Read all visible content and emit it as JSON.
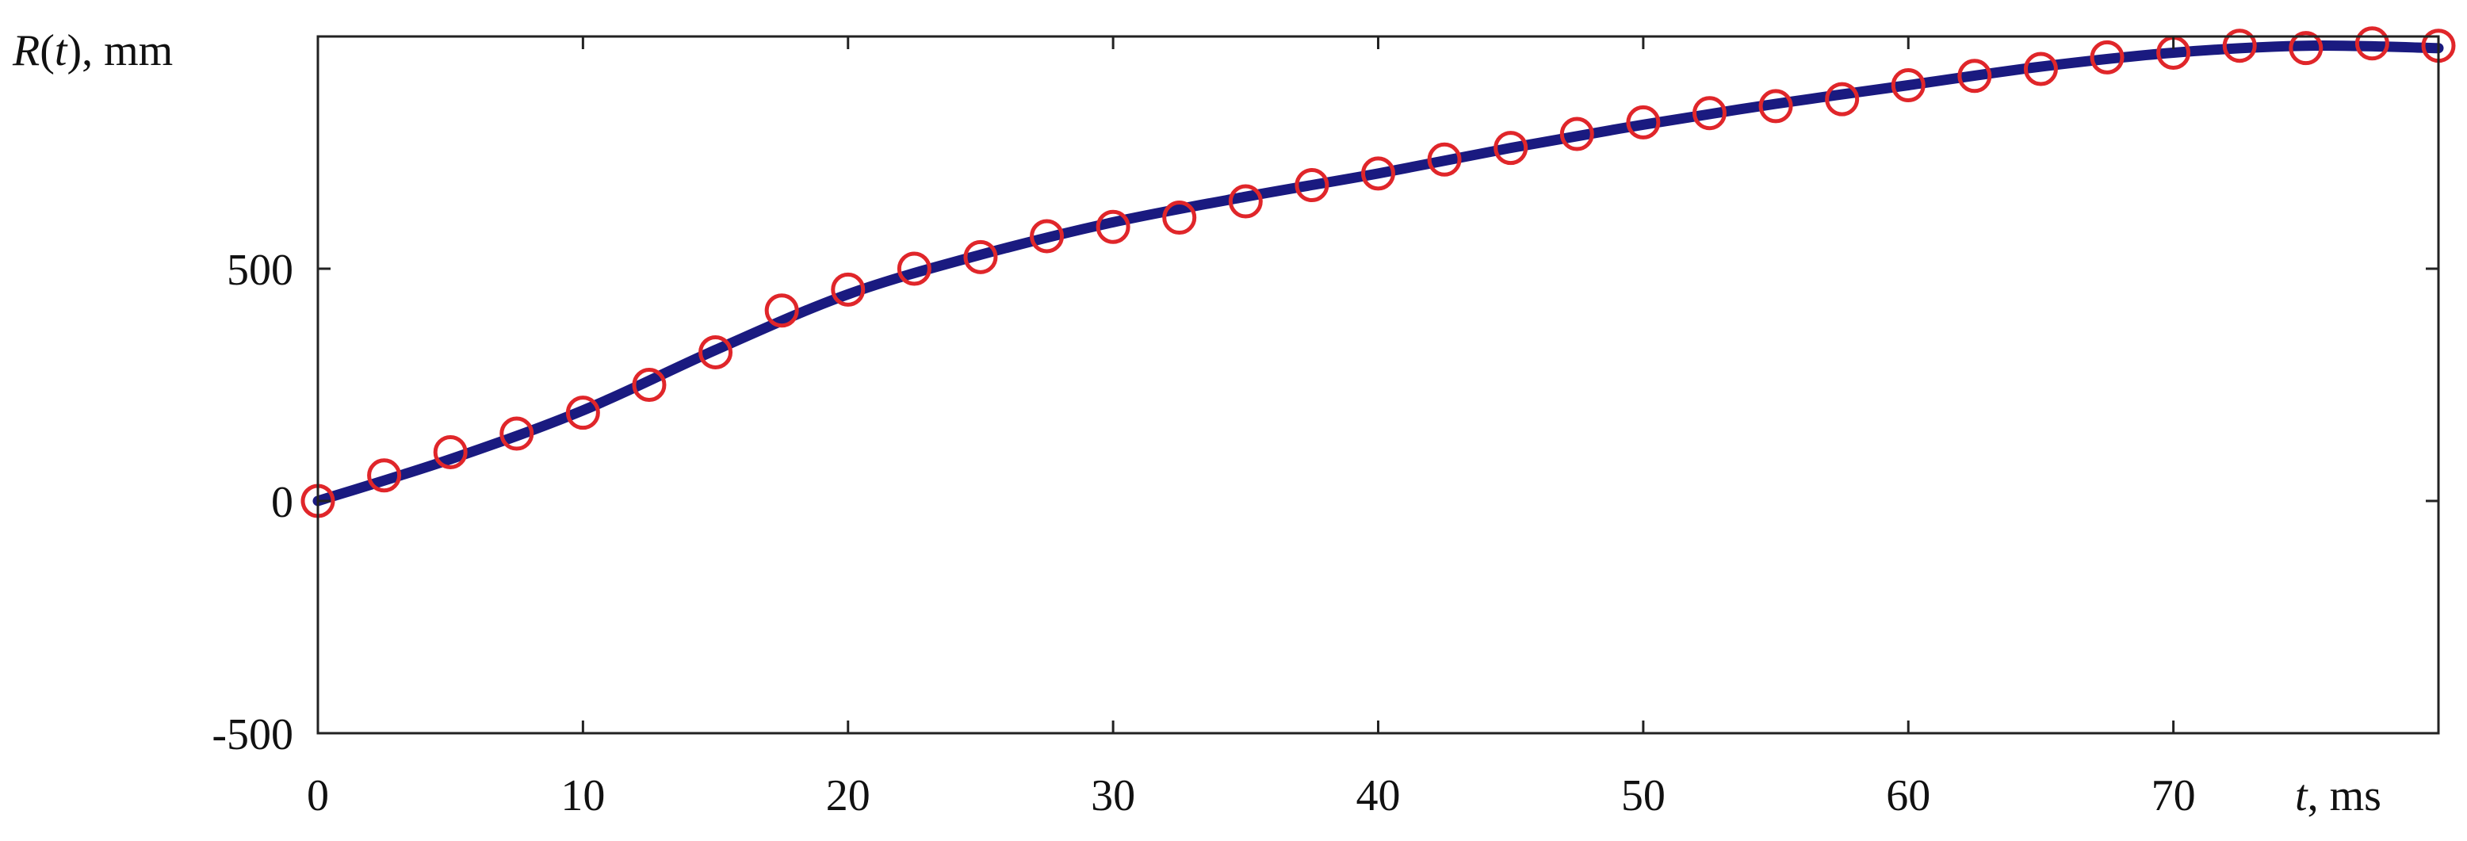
{
  "chart_data": {
    "type": "line",
    "title": "",
    "xlabel": {
      "var": "t",
      "unit": ", ms"
    },
    "ylabel": {
      "var": "R",
      "open": "(",
      "arg": "t",
      "close": ")",
      "unit": ", mm"
    },
    "xlim": [
      0,
      80
    ],
    "ylim": [
      -500,
      1000
    ],
    "x_ticks": [
      0,
      10,
      20,
      30,
      40,
      50,
      60,
      70
    ],
    "x_tick_labels": [
      "0",
      "10",
      "20",
      "30",
      "40",
      "50",
      "60",
      "70"
    ],
    "y_ticks": [
      -500,
      0,
      500
    ],
    "y_tick_labels": [
      "-500",
      "0",
      "500"
    ],
    "grid": false,
    "legend": "none",
    "series": [
      {
        "style": "line",
        "color": "#1a1a80",
        "x": [
          0,
          5,
          10,
          15,
          20,
          25,
          30,
          35,
          40,
          45,
          50,
          55,
          60,
          65,
          70,
          75,
          80
        ],
        "values": [
          0,
          90,
          195,
          325,
          445,
          530,
          600,
          655,
          705,
          760,
          810,
          855,
          895,
          935,
          965,
          980,
          975
        ]
      },
      {
        "style": "markers",
        "marker": "open-circle",
        "color": "#e0262a",
        "x": [
          0,
          2.5,
          5,
          7.5,
          10,
          12.5,
          15,
          17.5,
          20,
          22.5,
          25,
          27.5,
          30,
          32.5,
          35,
          37.5,
          40,
          42.5,
          45,
          47.5,
          50,
          52.5,
          55,
          57.5,
          60,
          62.5,
          65,
          67.5,
          70,
          72.5,
          75,
          77.5,
          80
        ],
        "values": [
          0,
          55,
          105,
          145,
          190,
          250,
          320,
          410,
          455,
          500,
          525,
          570,
          590,
          610,
          645,
          680,
          705,
          735,
          760,
          790,
          815,
          835,
          850,
          865,
          895,
          915,
          930,
          955,
          965,
          980,
          975,
          985,
          980
        ]
      }
    ]
  }
}
